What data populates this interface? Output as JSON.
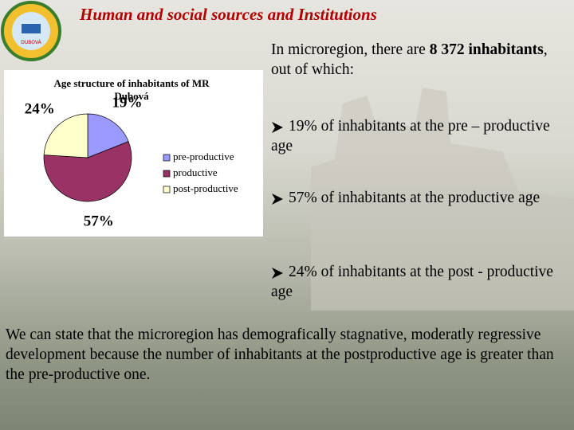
{
  "header": {
    "title": "Human and social sources and Institutions"
  },
  "logo": {
    "text": "DUBOVÁ"
  },
  "chart_data": {
    "type": "pie",
    "title": "Age structure of inhabitants of MR Dubová",
    "categories": [
      "pre-productive",
      "productive",
      "post-productive"
    ],
    "values": [
      19,
      57,
      24
    ],
    "value_labels": [
      "19%",
      "57%",
      "24%"
    ],
    "colors": [
      "#9999ff",
      "#993366",
      "#ffffcc"
    ]
  },
  "intro": {
    "before": "In microregion, there are ",
    "bold": "8 372 inhabitants",
    "after": ", out of which:"
  },
  "bullets": [
    "19% of inhabitants at the pre – productive age",
    "57% of inhabitants at the productive age",
    "24% of inhabitants at the post - productive age"
  ],
  "conclusion": "We can state that the microregion has demografically stagnative, moderatly regressive development because the number of inhabitants at the postproductive age is greater than the pre-productive one."
}
